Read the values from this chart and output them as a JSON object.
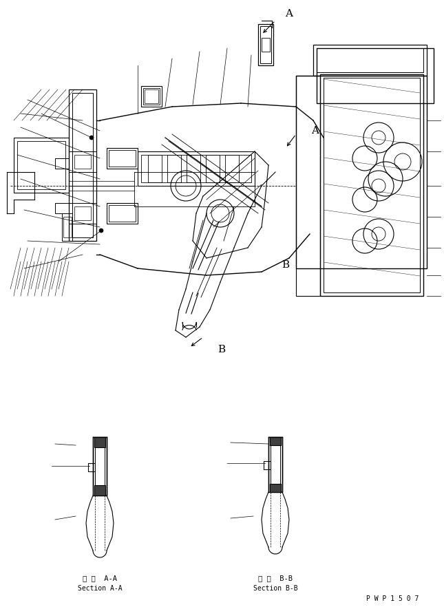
{
  "bg_color": "#ffffff",
  "line_color": "#000000",
  "fig_width": 6.45,
  "fig_height": 8.82,
  "dpi": 100,
  "label_AA_jp": "断 面  A-A",
  "label_AA_en": "Section A-A",
  "label_BB_jp": "断 面  B-B",
  "label_BB_en": "Section B-B",
  "watermark": "P W P 1 5 0 7",
  "label_A": "A",
  "label_B": "B"
}
